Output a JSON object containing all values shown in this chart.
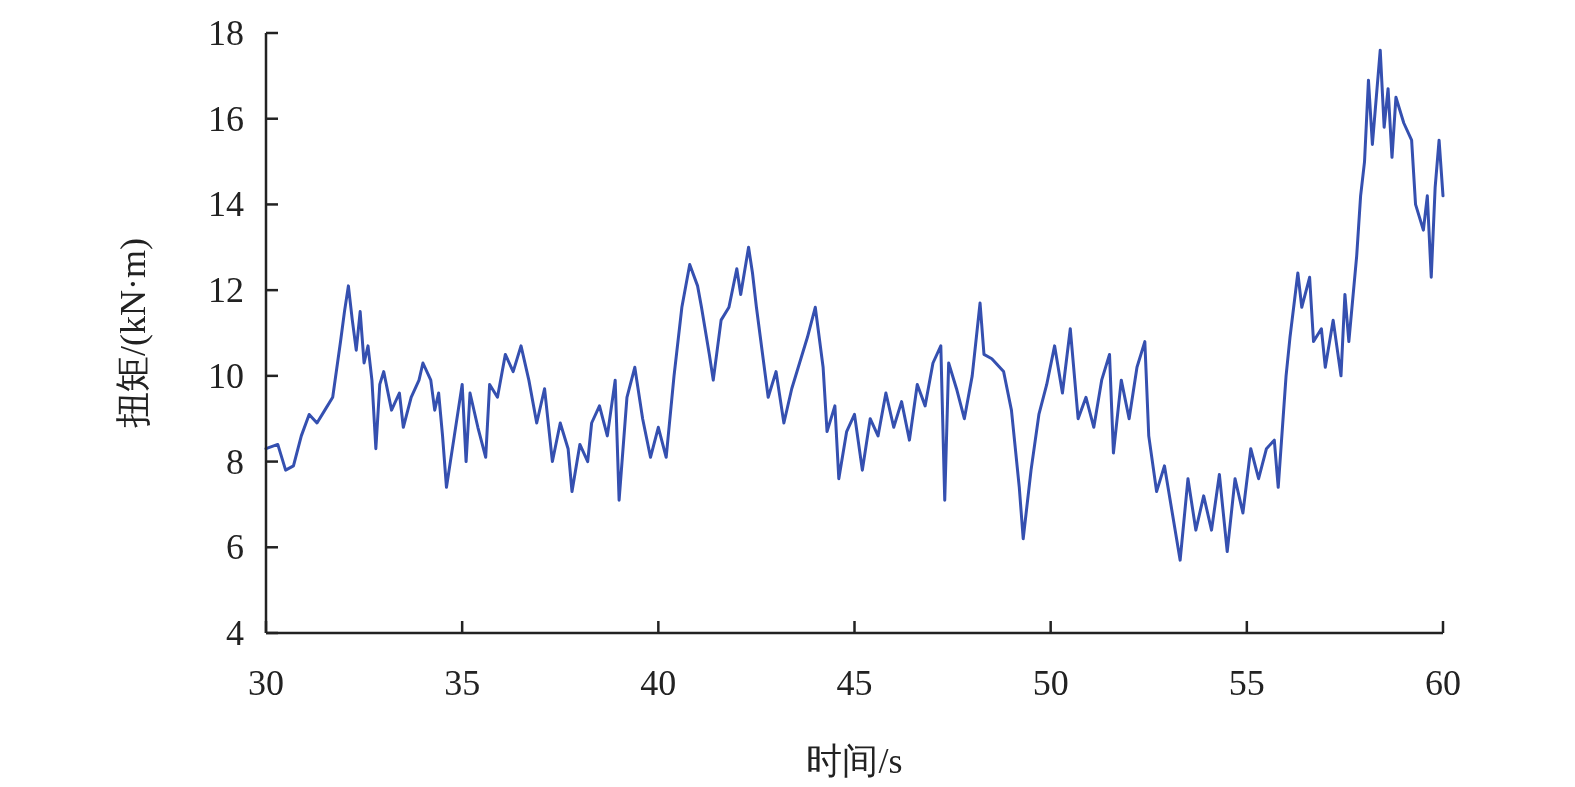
{
  "chart_data": {
    "type": "line",
    "xlabel": "时间/s",
    "ylabel": "扭矩/(kN·m)",
    "color": "#3550b0",
    "xlim": [
      30,
      60
    ],
    "ylim": [
      4,
      18
    ],
    "xticks": [
      30,
      35,
      40,
      45,
      50,
      55,
      60
    ],
    "yticks": [
      4,
      6,
      8,
      10,
      12,
      14,
      16,
      18
    ],
    "grid": false,
    "x": [
      30.0,
      30.3,
      30.5,
      30.7,
      30.9,
      31.1,
      31.3,
      31.5,
      31.7,
      31.9,
      32.0,
      32.1,
      32.2,
      32.3,
      32.4,
      32.5,
      32.6,
      32.7,
      32.8,
      32.9,
      33.0,
      33.2,
      33.4,
      33.5,
      33.7,
      33.9,
      34.0,
      34.2,
      34.3,
      34.4,
      34.5,
      34.6,
      34.8,
      35.0,
      35.1,
      35.2,
      35.4,
      35.6,
      35.7,
      35.9,
      36.1,
      36.3,
      36.5,
      36.7,
      36.9,
      37.1,
      37.3,
      37.5,
      37.7,
      37.8,
      38.0,
      38.2,
      38.3,
      38.5,
      38.7,
      38.9,
      39.0,
      39.2,
      39.4,
      39.6,
      39.8,
      40.0,
      40.2,
      40.4,
      40.6,
      40.8,
      41.0,
      41.1,
      41.3,
      41.4,
      41.6,
      41.8,
      42.0,
      42.1,
      42.3,
      42.4,
      42.5,
      42.6,
      42.8,
      43.0,
      43.2,
      43.4,
      43.6,
      43.8,
      44.0,
      44.2,
      44.3,
      44.5,
      44.6,
      44.8,
      45.0,
      45.2,
      45.4,
      45.6,
      45.8,
      46.0,
      46.2,
      46.4,
      46.6,
      46.8,
      47.0,
      47.2,
      47.3,
      47.4,
      47.6,
      47.8,
      48.0,
      48.2,
      48.3,
      48.5,
      48.8,
      49.0,
      49.2,
      49.3,
      49.5,
      49.7,
      49.9,
      50.1,
      50.3,
      50.5,
      50.7,
      50.9,
      51.1,
      51.3,
      51.5,
      51.6,
      51.8,
      52.0,
      52.2,
      52.4,
      52.5,
      52.7,
      52.9,
      53.1,
      53.3,
      53.5,
      53.7,
      53.9,
      54.1,
      54.3,
      54.5,
      54.7,
      54.9,
      55.1,
      55.3,
      55.5,
      55.7,
      55.8,
      56.0,
      56.1,
      56.3,
      56.4,
      56.6,
      56.7,
      56.9,
      57.0,
      57.2,
      57.4,
      57.5,
      57.6,
      57.8,
      57.9,
      58.0,
      58.1,
      58.2,
      58.4,
      58.5,
      58.6,
      58.7,
      58.8,
      59.0,
      59.2,
      59.3,
      59.5,
      59.6,
      59.7,
      59.8,
      59.9,
      60.0
    ],
    "values": [
      8.3,
      8.4,
      7.8,
      7.9,
      8.6,
      9.1,
      8.9,
      9.2,
      9.5,
      10.8,
      11.5,
      12.1,
      11.3,
      10.6,
      11.5,
      10.3,
      10.7,
      9.9,
      8.3,
      9.8,
      10.1,
      9.2,
      9.6,
      8.8,
      9.5,
      9.9,
      10.3,
      9.9,
      9.2,
      9.6,
      8.6,
      7.4,
      8.6,
      9.8,
      8.0,
      9.6,
      8.8,
      8.1,
      9.8,
      9.5,
      10.5,
      10.1,
      10.7,
      9.9,
      8.9,
      9.7,
      8.0,
      8.9,
      8.3,
      7.3,
      8.4,
      8.0,
      8.9,
      9.3,
      8.6,
      9.9,
      7.1,
      9.5,
      10.2,
      9.0,
      8.1,
      8.8,
      8.1,
      10.0,
      11.6,
      12.6,
      12.1,
      11.6,
      10.5,
      9.9,
      11.3,
      11.6,
      12.5,
      11.9,
      13.0,
      12.4,
      11.6,
      10.9,
      9.5,
      10.1,
      8.9,
      9.7,
      10.3,
      10.9,
      11.6,
      10.2,
      8.7,
      9.3,
      7.6,
      8.7,
      9.1,
      7.8,
      9.0,
      8.6,
      9.6,
      8.8,
      9.4,
      8.5,
      9.8,
      9.3,
      10.3,
      10.7,
      7.1,
      10.3,
      9.7,
      9.0,
      10.0,
      11.7,
      10.5,
      10.4,
      10.1,
      9.2,
      7.4,
      6.2,
      7.8,
      9.1,
      9.8,
      10.7,
      9.6,
      11.1,
      9.0,
      9.5,
      8.8,
      9.9,
      10.5,
      8.2,
      9.9,
      9.0,
      10.2,
      10.8,
      8.6,
      7.3,
      7.9,
      6.8,
      5.7,
      7.6,
      6.4,
      7.2,
      6.4,
      7.7,
      5.9,
      7.6,
      6.8,
      8.3,
      7.6,
      8.3,
      8.5,
      7.4,
      10.0,
      10.9,
      12.4,
      11.6,
      12.3,
      10.8,
      11.1,
      10.2,
      11.3,
      10.0,
      11.9,
      10.8,
      12.8,
      14.2,
      15.0,
      16.9,
      15.4,
      17.6,
      15.8,
      16.7,
      15.1,
      16.5,
      15.9,
      15.5,
      14.0,
      13.4,
      14.2,
      12.3,
      14.4,
      15.5,
      14.2
    ]
  }
}
